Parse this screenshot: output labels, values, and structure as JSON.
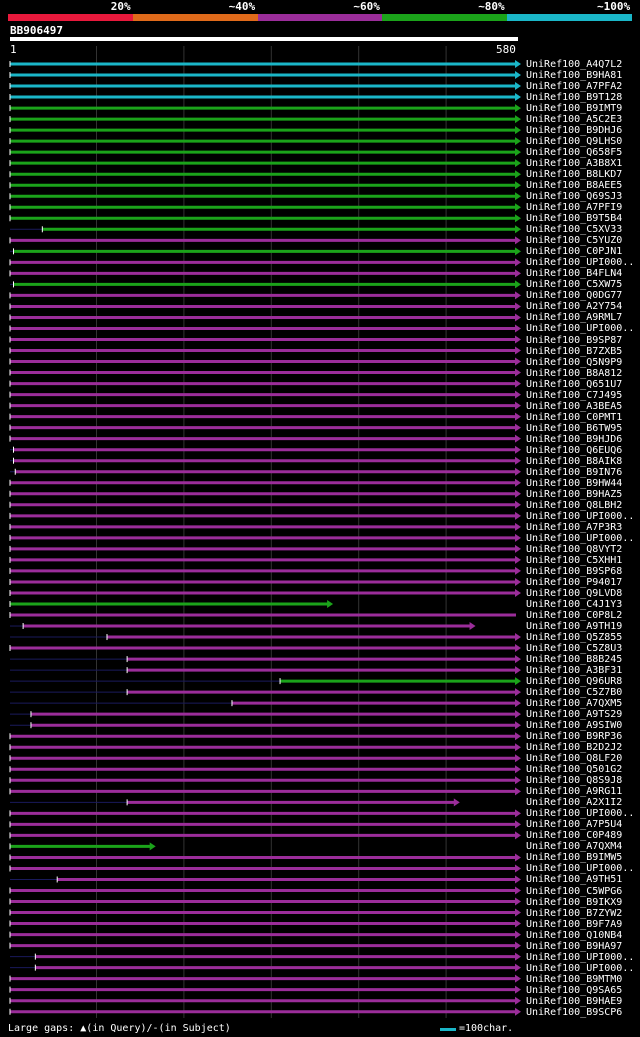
{
  "query_name": "BB906497",
  "ruler": {
    "start": "1",
    "end": "580"
  },
  "legend": [
    {
      "label": "20%",
      "color": "#e8193c"
    },
    {
      "label": "~40%",
      "color": "#e06a1a"
    },
    {
      "label": "~60%",
      "color": "#9b2d9a"
    },
    {
      "label": "~80%",
      "color": "#1ba31a"
    },
    {
      "label": "~100%",
      "color": "#1ab6c8"
    }
  ],
  "footer": {
    "gaps_label": "Large gaps:",
    "query_gap": "(in Query)/-",
    "subject_gap": "(in Subject)",
    "scale_label": "=100char."
  },
  "chart_data": {
    "type": "alignment-map",
    "query_length": 580,
    "hits": [
      {
        "name": "UniRef100_A4Q7L2",
        "start": 1,
        "end": 580,
        "color": "#1ab6c8",
        "arrow": true
      },
      {
        "name": "UniRef100_B9HA81",
        "start": 1,
        "end": 580,
        "color": "#1ab6c8",
        "arrow": true
      },
      {
        "name": "UniRef100_A7PFA2",
        "start": 1,
        "end": 580,
        "color": "#1ab6c8",
        "arrow": true
      },
      {
        "name": "UniRef100_B9T128",
        "start": 1,
        "end": 580,
        "color": "#1ab6c8",
        "arrow": true
      },
      {
        "name": "UniRef100_B9IMT9",
        "start": 1,
        "end": 580,
        "color": "#1ba31a",
        "arrow": true
      },
      {
        "name": "UniRef100_A5C2E3",
        "start": 1,
        "end": 580,
        "color": "#1ba31a",
        "arrow": true
      },
      {
        "name": "UniRef100_B9DHJ6",
        "start": 1,
        "end": 580,
        "color": "#1ba31a",
        "arrow": true
      },
      {
        "name": "UniRef100_Q9LHS0",
        "start": 1,
        "end": 580,
        "color": "#1ba31a",
        "arrow": true
      },
      {
        "name": "UniRef100_Q658F5",
        "start": 1,
        "end": 580,
        "color": "#1ba31a",
        "arrow": true
      },
      {
        "name": "UniRef100_A3B8X1",
        "start": 1,
        "end": 580,
        "color": "#1ba31a",
        "arrow": true
      },
      {
        "name": "UniRef100_B8LKD7",
        "start": 1,
        "end": 580,
        "color": "#1ba31a",
        "arrow": true
      },
      {
        "name": "UniRef100_B8AEE5",
        "start": 1,
        "end": 580,
        "color": "#1ba31a",
        "arrow": true
      },
      {
        "name": "UniRef100_Q69SJ3",
        "start": 1,
        "end": 580,
        "color": "#1ba31a",
        "arrow": true
      },
      {
        "name": "UniRef100_A7PFI9",
        "start": 1,
        "end": 580,
        "color": "#1ba31a",
        "arrow": true
      },
      {
        "name": "UniRef100_B9T5B4",
        "start": 1,
        "end": 580,
        "color": "#1ba31a",
        "arrow": true
      },
      {
        "name": "UniRef100_C5XV33",
        "start": 38,
        "end": 580,
        "color": "#1ba31a",
        "arrow": true
      },
      {
        "name": "UniRef100_C5YUZ0",
        "start": 1,
        "end": 580,
        "color": "#9b2d9a",
        "arrow": true
      },
      {
        "name": "UniRef100_C0PJN1",
        "start": 5,
        "end": 580,
        "color": "#1ba31a",
        "arrow": true
      },
      {
        "name": "UniRef100_UPI000..",
        "start": 1,
        "end": 580,
        "color": "#9b2d9a",
        "arrow": true
      },
      {
        "name": "UniRef100_B4FLN4",
        "start": 1,
        "end": 580,
        "color": "#9b2d9a",
        "arrow": true
      },
      {
        "name": "UniRef100_C5XW75",
        "start": 5,
        "end": 580,
        "color": "#1ba31a",
        "arrow": true
      },
      {
        "name": "UniRef100_Q0DG77",
        "start": 1,
        "end": 580,
        "color": "#9b2d9a",
        "arrow": true
      },
      {
        "name": "UniRef100_A2Y754",
        "start": 1,
        "end": 580,
        "color": "#9b2d9a",
        "arrow": true
      },
      {
        "name": "UniRef100_A9RML7",
        "start": 1,
        "end": 580,
        "color": "#9b2d9a",
        "arrow": true
      },
      {
        "name": "UniRef100_UPI000..",
        "start": 1,
        "end": 580,
        "color": "#9b2d9a",
        "arrow": true
      },
      {
        "name": "UniRef100_B9SP87",
        "start": 1,
        "end": 580,
        "color": "#9b2d9a",
        "arrow": true
      },
      {
        "name": "UniRef100_B7ZXB5",
        "start": 1,
        "end": 580,
        "color": "#9b2d9a",
        "arrow": true
      },
      {
        "name": "UniRef100_Q5N9P9",
        "start": 1,
        "end": 580,
        "color": "#9b2d9a",
        "arrow": true
      },
      {
        "name": "UniRef100_B8A812",
        "start": 1,
        "end": 580,
        "color": "#9b2d9a",
        "arrow": true
      },
      {
        "name": "UniRef100_Q651U7",
        "start": 1,
        "end": 580,
        "color": "#9b2d9a",
        "arrow": true
      },
      {
        "name": "UniRef100_C7J495",
        "start": 1,
        "end": 580,
        "color": "#9b2d9a",
        "arrow": true
      },
      {
        "name": "UniRef100_A3BEA5",
        "start": 1,
        "end": 580,
        "color": "#9b2d9a",
        "arrow": true
      },
      {
        "name": "UniRef100_C0PMT1",
        "start": 1,
        "end": 580,
        "color": "#9b2d9a",
        "arrow": true
      },
      {
        "name": "UniRef100_B6TW95",
        "start": 1,
        "end": 580,
        "color": "#9b2d9a",
        "arrow": true
      },
      {
        "name": "UniRef100_B9HJD6",
        "start": 1,
        "end": 580,
        "color": "#9b2d9a",
        "arrow": true
      },
      {
        "name": "UniRef100_Q6EUQ6",
        "start": 5,
        "end": 580,
        "color": "#9b2d9a",
        "arrow": true
      },
      {
        "name": "UniRef100_B8AIK8",
        "start": 5,
        "end": 580,
        "color": "#9b2d9a",
        "arrow": true
      },
      {
        "name": "UniRef100_B9IN76",
        "start": 7,
        "end": 580,
        "color": "#9b2d9a",
        "arrow": true
      },
      {
        "name": "UniRef100_B9HW44",
        "start": 1,
        "end": 580,
        "color": "#9b2d9a",
        "arrow": true
      },
      {
        "name": "UniRef100_B9HAZ5",
        "start": 1,
        "end": 580,
        "color": "#9b2d9a",
        "arrow": true
      },
      {
        "name": "UniRef100_Q8LBH2",
        "start": 1,
        "end": 580,
        "color": "#9b2d9a",
        "arrow": true
      },
      {
        "name": "UniRef100_UPI000..",
        "start": 1,
        "end": 580,
        "color": "#9b2d9a",
        "arrow": true
      },
      {
        "name": "UniRef100_A7P3R3",
        "start": 1,
        "end": 580,
        "color": "#9b2d9a",
        "arrow": true
      },
      {
        "name": "UniRef100_UPI000..",
        "start": 1,
        "end": 580,
        "color": "#9b2d9a",
        "arrow": true
      },
      {
        "name": "UniRef100_Q8VYT2",
        "start": 1,
        "end": 580,
        "color": "#9b2d9a",
        "arrow": true
      },
      {
        "name": "UniRef100_C5XHH1",
        "start": 1,
        "end": 580,
        "color": "#9b2d9a",
        "arrow": true
      },
      {
        "name": "UniRef100_B9SP68",
        "start": 1,
        "end": 580,
        "color": "#9b2d9a",
        "arrow": true
      },
      {
        "name": "UniRef100_P94017",
        "start": 1,
        "end": 580,
        "color": "#9b2d9a",
        "arrow": true
      },
      {
        "name": "UniRef100_Q9LVD8",
        "start": 1,
        "end": 580,
        "color": "#9b2d9a",
        "arrow": true
      },
      {
        "name": "UniRef100_C4J1Y3",
        "start": 1,
        "end": 365,
        "color": "#1ba31a",
        "arrow": true
      },
      {
        "name": "UniRef100_C0P8L2",
        "start": 1,
        "end": 580,
        "color": "#9b2d9a",
        "arrow": false
      },
      {
        "name": "UniRef100_A9TH19",
        "start": 16,
        "end": 528,
        "color": "#9b2d9a",
        "arrow": true
      },
      {
        "name": "UniRef100_Q5Z855",
        "start": 112,
        "end": 580,
        "color": "#9b2d9a",
        "arrow": true
      },
      {
        "name": "UniRef100_C5Z8U3",
        "start": 1,
        "end": 580,
        "color": "#9b2d9a",
        "arrow": true
      },
      {
        "name": "UniRef100_B8B245",
        "start": 135,
        "end": 580,
        "color": "#9b2d9a",
        "arrow": true
      },
      {
        "name": "UniRef100_A3BF31",
        "start": 135,
        "end": 580,
        "color": "#9b2d9a",
        "arrow": true
      },
      {
        "name": "UniRef100_Q96UR8",
        "start": 310,
        "end": 580,
        "color": "#1ba31a",
        "arrow": true
      },
      {
        "name": "UniRef100_C5Z7B0",
        "start": 135,
        "end": 580,
        "color": "#9b2d9a",
        "arrow": true
      },
      {
        "name": "UniRef100_A7QXM5",
        "start": 255,
        "end": 580,
        "color": "#9b2d9a",
        "arrow": true
      },
      {
        "name": "UniRef100_A9TS29",
        "start": 25,
        "end": 580,
        "color": "#9b2d9a",
        "arrow": true
      },
      {
        "name": "UniRef100_A9SIW0",
        "start": 25,
        "end": 580,
        "color": "#9b2d9a",
        "arrow": true
      },
      {
        "name": "UniRef100_B9RP36",
        "start": 1,
        "end": 580,
        "color": "#9b2d9a",
        "arrow": true
      },
      {
        "name": "UniRef100_B2D2J2",
        "start": 1,
        "end": 580,
        "color": "#9b2d9a",
        "arrow": true
      },
      {
        "name": "UniRef100_Q8LF20",
        "start": 1,
        "end": 580,
        "color": "#9b2d9a",
        "arrow": true
      },
      {
        "name": "UniRef100_Q501G2",
        "start": 1,
        "end": 580,
        "color": "#9b2d9a",
        "arrow": true
      },
      {
        "name": "UniRef100_Q8S9J8",
        "start": 1,
        "end": 580,
        "color": "#9b2d9a",
        "arrow": true
      },
      {
        "name": "UniRef100_A9RG11",
        "start": 1,
        "end": 580,
        "color": "#9b2d9a",
        "arrow": true
      },
      {
        "name": "UniRef100_A2X1I2",
        "start": 135,
        "end": 510,
        "color": "#9b2d9a",
        "arrow": true
      },
      {
        "name": "UniRef100_UPI000..",
        "start": 1,
        "end": 580,
        "color": "#9b2d9a",
        "arrow": true
      },
      {
        "name": "UniRef100_A7P5U4",
        "start": 1,
        "end": 580,
        "color": "#9b2d9a",
        "arrow": true
      },
      {
        "name": "UniRef100_C0P489",
        "start": 1,
        "end": 580,
        "color": "#9b2d9a",
        "arrow": true
      },
      {
        "name": "UniRef100_A7QXM4",
        "start": 1,
        "end": 162,
        "color": "#1ba31a",
        "arrow": true
      },
      {
        "name": "UniRef100_B9IMW5",
        "start": 1,
        "end": 580,
        "color": "#9b2d9a",
        "arrow": true
      },
      {
        "name": "UniRef100_UPI000..",
        "start": 1,
        "end": 580,
        "color": "#9b2d9a",
        "arrow": true
      },
      {
        "name": "UniRef100_A9TH51",
        "start": 55,
        "end": 580,
        "color": "#9b2d9a",
        "arrow": true
      },
      {
        "name": "UniRef100_C5WPG6",
        "start": 1,
        "end": 580,
        "color": "#9b2d9a",
        "arrow": true
      },
      {
        "name": "UniRef100_B9IKX9",
        "start": 1,
        "end": 580,
        "color": "#9b2d9a",
        "arrow": true
      },
      {
        "name": "UniRef100_B7ZYW2",
        "start": 1,
        "end": 580,
        "color": "#9b2d9a",
        "arrow": true
      },
      {
        "name": "UniRef100_B9F7A9",
        "start": 1,
        "end": 580,
        "color": "#9b2d9a",
        "arrow": true
      },
      {
        "name": "UniRef100_Q10NB4",
        "start": 1,
        "end": 580,
        "color": "#9b2d9a",
        "arrow": true
      },
      {
        "name": "UniRef100_B9HA97",
        "start": 1,
        "end": 580,
        "color": "#9b2d9a",
        "arrow": true
      },
      {
        "name": "UniRef100_UPI000..",
        "start": 30,
        "end": 580,
        "color": "#9b2d9a",
        "arrow": true
      },
      {
        "name": "UniRef100_UPI000..",
        "start": 30,
        "end": 580,
        "color": "#9b2d9a",
        "arrow": true
      },
      {
        "name": "UniRef100_B9MTM0",
        "start": 1,
        "end": 580,
        "color": "#9b2d9a",
        "arrow": true
      },
      {
        "name": "UniRef100_Q9SA65",
        "start": 1,
        "end": 580,
        "color": "#9b2d9a",
        "arrow": true
      },
      {
        "name": "UniRef100_B9HAE9",
        "start": 1,
        "end": 580,
        "color": "#9b2d9a",
        "arrow": true
      },
      {
        "name": "UniRef100_B9SCP6",
        "start": 1,
        "end": 580,
        "color": "#9b2d9a",
        "arrow": true
      }
    ]
  }
}
